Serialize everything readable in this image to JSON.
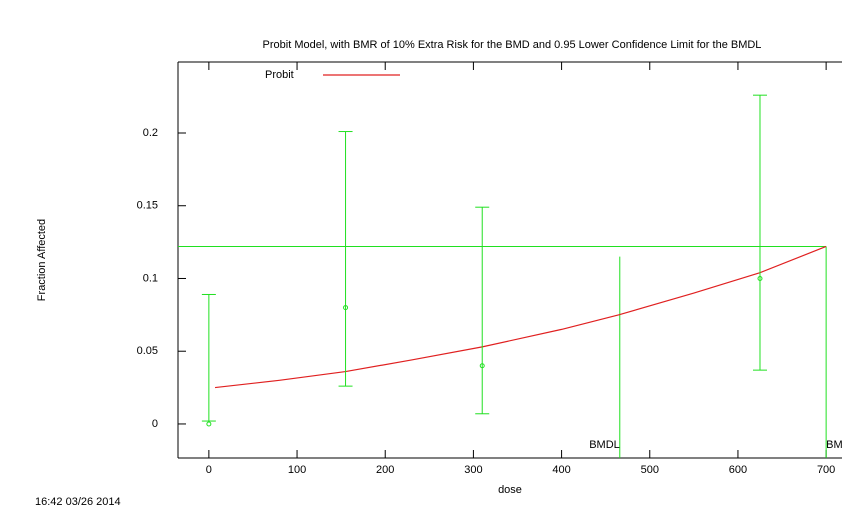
{
  "chart_data": {
    "type": "line",
    "title": "Probit Model, with BMR of 10% Extra Risk for the BMD and 0.95 Lower Confidence Limit for the BMDL",
    "x_label": "dose",
    "y_label": "Fraction Affected",
    "timestamp": "16:42 03/26 2014",
    "xlim": [
      -35,
      718
    ],
    "ylim": [
      -0.0234,
      0.2488
    ],
    "xticks": [
      0,
      100,
      200,
      300,
      400,
      500,
      600,
      700
    ],
    "yticks": [
      0,
      0.05,
      0.1,
      0.15,
      0.2
    ],
    "series": [
      {
        "name": "Probit",
        "color": "#e02020",
        "x": [
          7,
          80,
          155,
          230,
          310,
          400,
          465,
          550,
          625,
          700
        ],
        "values": [
          0.025,
          0.03,
          0.036,
          0.044,
          0.053,
          0.065,
          0.075,
          0.09,
          0.104,
          0.122
        ]
      }
    ],
    "observations": {
      "color": "#20e020",
      "x": [
        0,
        155,
        310,
        625
      ],
      "values": [
        0,
        0.08,
        0.04,
        0.1
      ],
      "lower": [
        0.002,
        0.026,
        0.007,
        0.037
      ],
      "upper": [
        0.089,
        0.201,
        0.149,
        0.226
      ]
    },
    "bmr_line": {
      "value": 0.122,
      "color": "#20e020"
    },
    "bmdl": {
      "label": "BMDL",
      "x": 466,
      "top": 0.115
    },
    "bmd": {
      "label": "BMD",
      "x": 700,
      "top": 0.122
    }
  }
}
